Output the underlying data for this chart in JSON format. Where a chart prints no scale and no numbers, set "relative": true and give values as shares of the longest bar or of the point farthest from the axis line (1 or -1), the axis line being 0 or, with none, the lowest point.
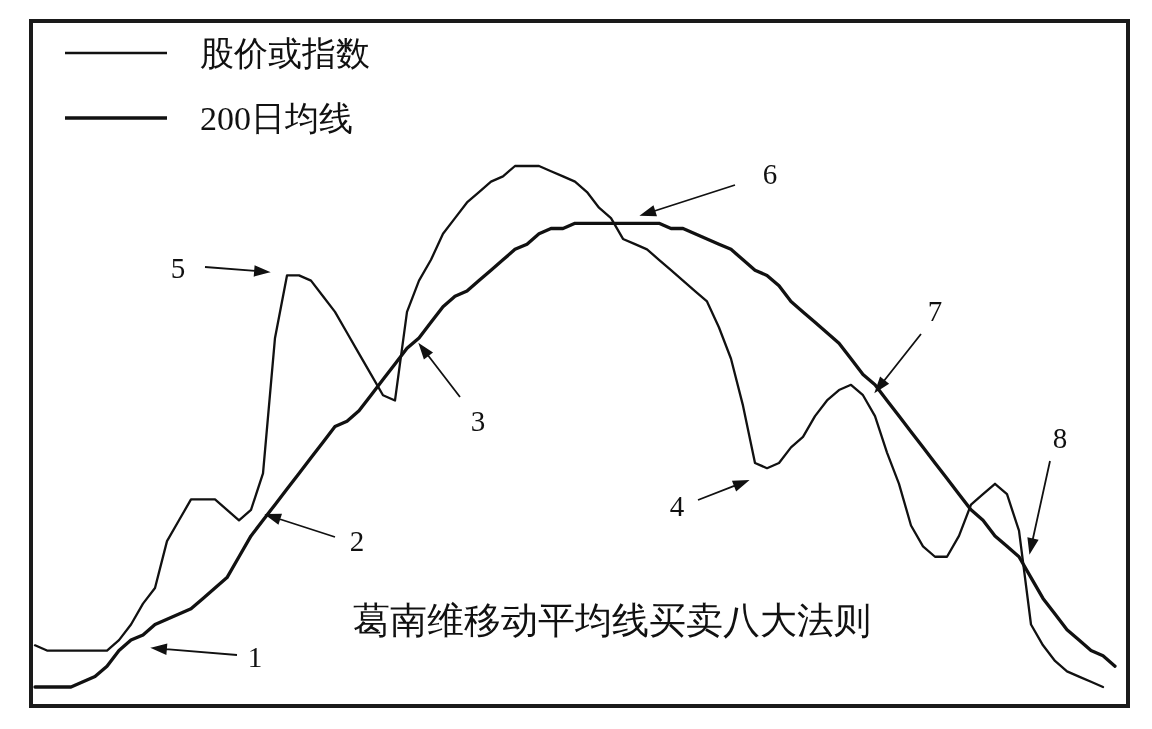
{
  "chart_data": {
    "type": "line",
    "title": "葛南维移动平均线买卖八大法则",
    "relative": true,
    "legend": "top left",
    "categories": [
      null,
      null,
      null,
      null,
      null,
      null,
      null,
      null,
      null,
      null,
      null,
      null,
      null,
      null,
      null,
      null,
      null,
      null,
      null,
      null,
      null,
      null,
      null,
      null,
      null,
      null,
      null,
      null,
      null,
      null,
      null,
      null,
      null,
      null,
      null,
      null,
      null,
      null,
      null,
      null,
      null,
      null,
      null,
      null,
      null,
      null,
      null,
      null,
      null,
      null,
      null,
      null,
      null,
      null,
      null,
      null,
      null,
      null,
      null,
      null,
      null,
      null,
      null,
      null,
      null,
      null,
      null,
      null,
      null,
      null,
      null,
      null,
      null,
      null,
      null,
      null,
      null,
      null,
      null,
      null,
      null,
      null,
      null,
      null,
      null,
      null,
      null,
      null,
      null,
      null,
      null
    ],
    "series": [
      {
        "name": "股价或指数",
        "color": "#111111",
        "values": [
          0.08,
          0.07,
          0.07,
          0.07,
          0.07,
          0.07,
          0.07,
          0.09,
          0.12,
          0.16,
          0.19,
          0.28,
          0.32,
          0.36,
          0.36,
          0.36,
          0.34,
          0.32,
          0.34,
          0.41,
          0.67,
          0.79,
          0.79,
          0.78,
          0.75,
          0.72,
          0.68,
          0.64,
          0.6,
          0.56,
          0.55,
          0.72,
          0.78,
          0.82,
          0.87,
          0.9,
          0.93,
          0.95,
          0.97,
          0.98,
          1.0,
          1.0,
          1.0,
          0.99,
          0.98,
          0.97,
          0.95,
          0.92,
          0.9,
          0.86,
          0.85,
          0.84,
          0.82,
          0.8,
          0.78,
          0.76,
          0.74,
          0.69,
          0.63,
          0.54,
          0.43,
          0.42,
          0.43,
          0.46,
          0.48,
          0.52,
          0.55,
          0.57,
          0.58,
          0.56,
          0.52,
          0.45,
          0.39,
          0.31,
          0.27,
          0.25,
          0.25,
          0.29,
          0.35,
          0.37,
          0.39,
          0.37,
          0.3,
          0.12,
          0.08,
          0.05,
          0.03,
          0.02,
          0.01,
          0.0,
          null
        ]
      },
      {
        "name": "200日均线",
        "color": "#111111",
        "values": [
          0,
          0,
          0,
          0,
          0.01,
          0.02,
          0.04,
          0.07,
          0.09,
          0.1,
          0.12,
          0.13,
          0.14,
          0.15,
          0.17,
          0.19,
          0.21,
          0.25,
          0.29,
          0.32,
          0.35,
          0.38,
          0.41,
          0.44,
          0.47,
          0.5,
          0.51,
          0.53,
          0.56,
          0.59,
          0.62,
          0.65,
          0.67,
          0.7,
          0.73,
          0.75,
          0.76,
          0.78,
          0.8,
          0.82,
          0.84,
          0.85,
          0.87,
          0.88,
          0.88,
          0.89,
          0.89,
          0.89,
          0.89,
          0.89,
          0.89,
          0.89,
          0.89,
          0.88,
          0.88,
          0.87,
          0.86,
          0.85,
          0.84,
          0.82,
          0.8,
          0.79,
          0.77,
          0.74,
          0.72,
          0.7,
          0.68,
          0.66,
          0.63,
          0.6,
          0.58,
          0.55,
          0.52,
          0.49,
          0.46,
          0.43,
          0.4,
          0.37,
          0.34,
          0.32,
          0.29,
          0.27,
          0.25,
          0.21,
          0.17,
          0.14,
          0.11,
          0.09,
          0.07,
          0.06,
          0.04
        ]
      }
    ],
    "annotations": [
      "1",
      "2",
      "3",
      "4",
      "5",
      "6",
      "7",
      "8"
    ]
  }
}
